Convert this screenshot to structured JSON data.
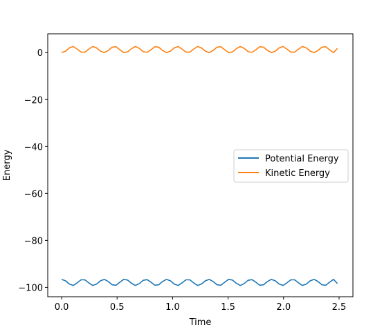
{
  "chart_data": {
    "type": "line",
    "xlabel": "Time",
    "ylabel": "Energy",
    "xlim": [
      -0.125,
      2.625
    ],
    "ylim": [
      -104,
      8
    ],
    "xticks": [
      0.0,
      0.5,
      1.0,
      1.5,
      2.0,
      2.5
    ],
    "xtick_labels": [
      "0.0",
      "0.5",
      "1.0",
      "1.5",
      "2.0",
      "2.5"
    ],
    "yticks": [
      0,
      -20,
      -40,
      -60,
      -80,
      -100
    ],
    "ytick_labels": [
      "0",
      "−20",
      "−40",
      "−60",
      "−80",
      "−100"
    ],
    "legend_position": "center-right",
    "series": [
      {
        "name": "Potential Energy",
        "color": "#1f77b4",
        "x": [
          0.0,
          0.035,
          0.07,
          0.105,
          0.14,
          0.175,
          0.21,
          0.245,
          0.28,
          0.315,
          0.35,
          0.385,
          0.42,
          0.455,
          0.49,
          0.525,
          0.56,
          0.595,
          0.63,
          0.665,
          0.7,
          0.735,
          0.77,
          0.805,
          0.84,
          0.875,
          0.91,
          0.945,
          0.98,
          1.015,
          1.05,
          1.085,
          1.12,
          1.155,
          1.19,
          1.225,
          1.26,
          1.295,
          1.33,
          1.365,
          1.4,
          1.435,
          1.47,
          1.505,
          1.54,
          1.575,
          1.61,
          1.645,
          1.68,
          1.715,
          1.75,
          1.785,
          1.82,
          1.855,
          1.89,
          1.925,
          1.96,
          1.995,
          2.03,
          2.065,
          2.1,
          2.135,
          2.17,
          2.205,
          2.24,
          2.275,
          2.31,
          2.345,
          2.38,
          2.415,
          2.45,
          2.485
        ],
        "y": [
          -96.6,
          -97.2,
          -98.6,
          -99.2,
          -98.1,
          -96.8,
          -96.8,
          -98.1,
          -99.2,
          -98.6,
          -97.2,
          -96.6,
          -97.5,
          -98.9,
          -99.1,
          -97.8,
          -96.6,
          -96.9,
          -98.3,
          -99.2,
          -98.4,
          -97.0,
          -96.7,
          -97.8,
          -99.1,
          -98.9,
          -97.5,
          -96.6,
          -97.2,
          -98.6,
          -99.2,
          -98.1,
          -96.8,
          -96.8,
          -98.1,
          -99.2,
          -98.6,
          -97.2,
          -96.6,
          -97.5,
          -98.9,
          -99.1,
          -97.8,
          -96.6,
          -96.9,
          -98.3,
          -99.2,
          -98.4,
          -97.0,
          -96.7,
          -97.8,
          -99.1,
          -98.9,
          -97.5,
          -96.6,
          -97.2,
          -98.6,
          -99.2,
          -98.1,
          -96.8,
          -96.8,
          -98.1,
          -99.2,
          -98.6,
          -97.2,
          -96.6,
          -97.5,
          -98.9,
          -99.1,
          -97.8,
          -96.6,
          -98.4
        ]
      },
      {
        "name": "Kinetic Energy",
        "color": "#ff7f0e",
        "x": [
          0.0,
          0.035,
          0.07,
          0.105,
          0.14,
          0.175,
          0.21,
          0.245,
          0.28,
          0.315,
          0.35,
          0.385,
          0.42,
          0.455,
          0.49,
          0.525,
          0.56,
          0.595,
          0.63,
          0.665,
          0.7,
          0.735,
          0.77,
          0.805,
          0.84,
          0.875,
          0.91,
          0.945,
          0.98,
          1.015,
          1.05,
          1.085,
          1.12,
          1.155,
          1.19,
          1.225,
          1.26,
          1.295,
          1.33,
          1.365,
          1.4,
          1.435,
          1.47,
          1.505,
          1.54,
          1.575,
          1.61,
          1.645,
          1.68,
          1.715,
          1.75,
          1.785,
          1.82,
          1.855,
          1.89,
          1.925,
          1.96,
          1.995,
          2.03,
          2.065,
          2.1,
          2.135,
          2.17,
          2.205,
          2.24,
          2.275,
          2.31,
          2.345,
          2.38,
          2.415,
          2.45,
          2.485
        ],
        "y": [
          0.0,
          0.6,
          2.0,
          2.6,
          1.5,
          0.2,
          0.2,
          1.5,
          2.6,
          2.0,
          0.6,
          0.0,
          0.9,
          2.3,
          2.5,
          1.2,
          0.0,
          0.3,
          1.7,
          2.6,
          1.8,
          0.4,
          0.1,
          1.2,
          2.5,
          2.3,
          0.9,
          0.0,
          0.6,
          2.0,
          2.6,
          1.5,
          0.2,
          0.2,
          1.5,
          2.6,
          2.0,
          0.6,
          0.0,
          0.9,
          2.3,
          2.5,
          1.2,
          0.0,
          0.3,
          1.7,
          2.6,
          1.8,
          0.4,
          0.1,
          1.2,
          2.5,
          2.3,
          0.9,
          0.0,
          0.6,
          2.0,
          2.6,
          1.5,
          0.2,
          0.2,
          1.5,
          2.6,
          2.0,
          0.6,
          0.0,
          0.9,
          2.3,
          2.5,
          1.2,
          0.0,
          1.8
        ]
      }
    ]
  }
}
